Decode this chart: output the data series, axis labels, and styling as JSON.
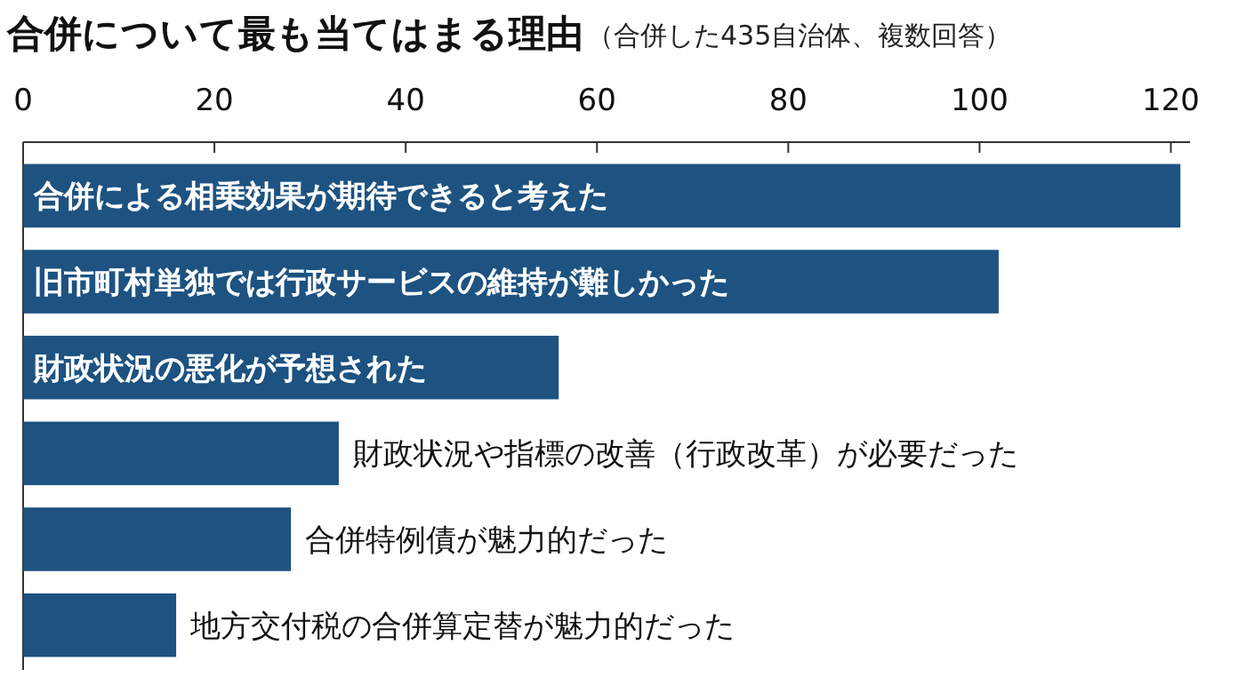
{
  "chart_data": {
    "type": "bar",
    "orientation": "horizontal",
    "title": "合併について最も当てはまる理由",
    "subtitle": "（合併した435自治体、複数回答）",
    "categories": [
      "合併による相乗効果が期待できると考えた",
      "旧市町村単独では行政サービスの維持が難しかった",
      "財政状況の悪化が予想された",
      "財政状況や指標の改善（行政改革）が必要だった",
      "合併特例債が魅力的だった",
      "地方交付税の合併算定替が魅力的だった"
    ],
    "values": [
      121,
      102,
      56,
      33,
      28,
      16
    ],
    "color": "#1d5281",
    "xlim": [
      0,
      122
    ],
    "xticks": [
      0,
      20,
      40,
      60,
      80,
      100,
      120
    ],
    "grid": false
  }
}
